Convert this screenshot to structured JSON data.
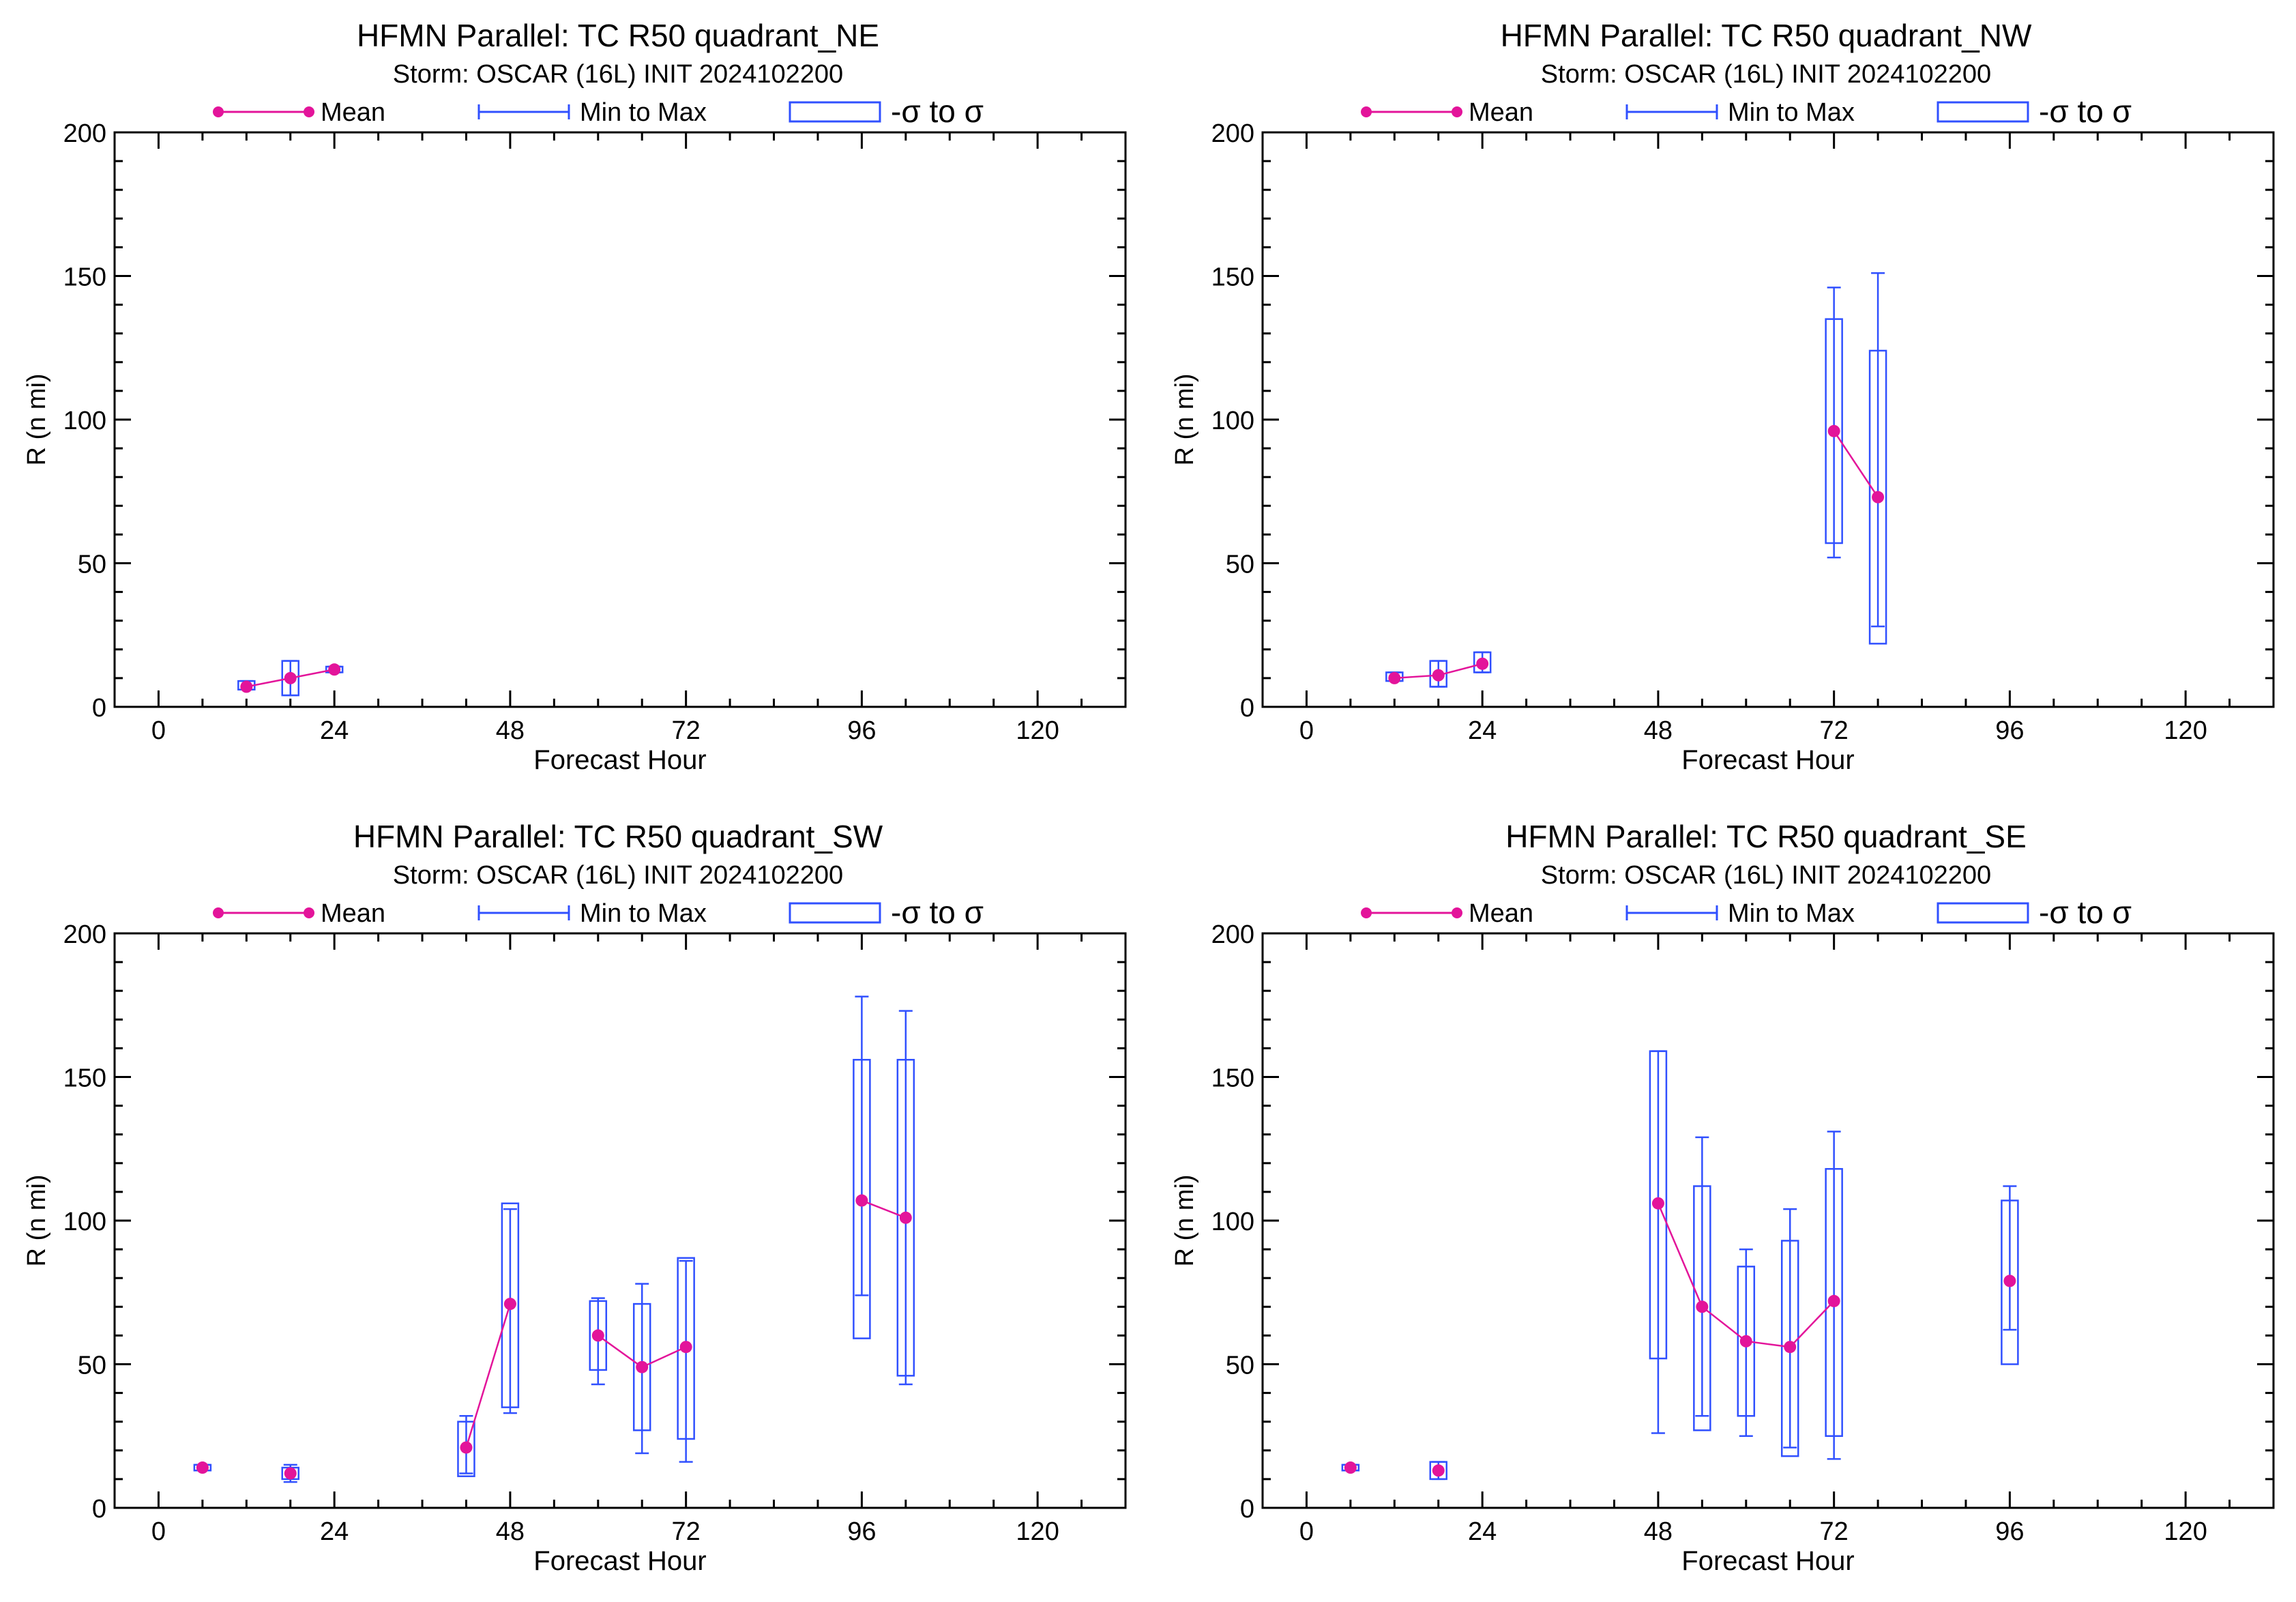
{
  "legend": {
    "mean_label": "Mean",
    "minmax_label": "Min to Max",
    "sigma_label": "-σ to σ"
  },
  "colors": {
    "mean": "#e3149a",
    "box": "#3050ff",
    "axes": "#000000"
  },
  "chart_data": [
    {
      "type": "box",
      "title": "HFMN Parallel: TC  R50 quadrant_NE",
      "subtitle": "Storm: OSCAR (16L) INIT 2024102200",
      "xlabel": "Forecast Hour",
      "ylabel": "R (n mi)",
      "xlim": [
        -6,
        132
      ],
      "ylim": [
        0,
        200
      ],
      "xticks": [
        0,
        24,
        48,
        72,
        96,
        120
      ],
      "yticks": [
        0,
        50,
        100,
        150,
        200
      ],
      "points": [
        {
          "x": 12,
          "mean": 7,
          "min": 6,
          "max": 9,
          "sd_lo": 6,
          "sd_hi": 9
        },
        {
          "x": 18,
          "mean": 10,
          "min": 4,
          "max": 16,
          "sd_lo": 4,
          "sd_hi": 16
        },
        {
          "x": 24,
          "mean": 13,
          "min": 12,
          "max": 14,
          "sd_lo": 12,
          "sd_hi": 14
        }
      ]
    },
    {
      "type": "box",
      "title": "HFMN Parallel: TC  R50 quadrant_NW",
      "subtitle": "Storm: OSCAR (16L) INIT 2024102200",
      "xlabel": "Forecast Hour",
      "ylabel": "R (n mi)",
      "xlim": [
        -6,
        132
      ],
      "ylim": [
        0,
        200
      ],
      "xticks": [
        0,
        24,
        48,
        72,
        96,
        120
      ],
      "yticks": [
        0,
        50,
        100,
        150,
        200
      ],
      "points": [
        {
          "x": 12,
          "mean": 10,
          "min": 9,
          "max": 12,
          "sd_lo": 9,
          "sd_hi": 12
        },
        {
          "x": 18,
          "mean": 11,
          "min": 7,
          "max": 16,
          "sd_lo": 7,
          "sd_hi": 16
        },
        {
          "x": 24,
          "mean": 15,
          "min": 12,
          "max": 19,
          "sd_lo": 12,
          "sd_hi": 19
        },
        {
          "x": 72,
          "mean": 96,
          "min": 52,
          "max": 146,
          "sd_lo": 57,
          "sd_hi": 135
        },
        {
          "x": 78,
          "mean": 73,
          "min": 28,
          "max": 151,
          "sd_lo": 22,
          "sd_hi": 124
        }
      ]
    },
    {
      "type": "box",
      "title": "HFMN Parallel: TC  R50 quadrant_SW",
      "subtitle": "Storm: OSCAR (16L) INIT 2024102200",
      "xlabel": "Forecast Hour",
      "ylabel": "R (n mi)",
      "xlim": [
        -6,
        132
      ],
      "ylim": [
        0,
        200
      ],
      "xticks": [
        0,
        24,
        48,
        72,
        96,
        120
      ],
      "yticks": [
        0,
        50,
        100,
        150,
        200
      ],
      "points": [
        {
          "x": 6,
          "mean": 14,
          "min": 13,
          "max": 15,
          "sd_lo": 13,
          "sd_hi": 15
        },
        {
          "x": 18,
          "mean": 12,
          "min": 9,
          "max": 15,
          "sd_lo": 10,
          "sd_hi": 14
        },
        {
          "x": 42,
          "mean": 21,
          "min": 12,
          "max": 32,
          "sd_lo": 11,
          "sd_hi": 30
        },
        {
          "x": 48,
          "mean": 71,
          "min": 33,
          "max": 104,
          "sd_lo": 35,
          "sd_hi": 106
        },
        {
          "x": 60,
          "mean": 60,
          "min": 43,
          "max": 73,
          "sd_lo": 48,
          "sd_hi": 72
        },
        {
          "x": 66,
          "mean": 49,
          "min": 19,
          "max": 78,
          "sd_lo": 27,
          "sd_hi": 71
        },
        {
          "x": 72,
          "mean": 56,
          "min": 16,
          "max": 86,
          "sd_lo": 24,
          "sd_hi": 87
        },
        {
          "x": 96,
          "mean": 107,
          "min": 74,
          "max": 178,
          "sd_lo": 59,
          "sd_hi": 156
        },
        {
          "x": 102,
          "mean": 101,
          "min": 43,
          "max": 173,
          "sd_lo": 46,
          "sd_hi": 156
        }
      ]
    },
    {
      "type": "box",
      "title": "HFMN Parallel: TC  R50 quadrant_SE",
      "subtitle": "Storm: OSCAR (16L) INIT 2024102200",
      "xlabel": "Forecast Hour",
      "ylabel": "R (n mi)",
      "xlim": [
        -6,
        132
      ],
      "ylim": [
        0,
        200
      ],
      "xticks": [
        0,
        24,
        48,
        72,
        96,
        120
      ],
      "yticks": [
        0,
        50,
        100,
        150,
        200
      ],
      "points": [
        {
          "x": 6,
          "mean": 14,
          "min": 13,
          "max": 15,
          "sd_lo": 13,
          "sd_hi": 15
        },
        {
          "x": 18,
          "mean": 13,
          "min": 10,
          "max": 16,
          "sd_lo": 10,
          "sd_hi": 16
        },
        {
          "x": 48,
          "mean": 106,
          "min": 26,
          "max": 159,
          "sd_lo": 52,
          "sd_hi": 159
        },
        {
          "x": 54,
          "mean": 70,
          "min": 32,
          "max": 129,
          "sd_lo": 27,
          "sd_hi": 112
        },
        {
          "x": 60,
          "mean": 58,
          "min": 25,
          "max": 90,
          "sd_lo": 32,
          "sd_hi": 84
        },
        {
          "x": 66,
          "mean": 56,
          "min": 21,
          "max": 104,
          "sd_lo": 18,
          "sd_hi": 93
        },
        {
          "x": 72,
          "mean": 72,
          "min": 17,
          "max": 131,
          "sd_lo": 25,
          "sd_hi": 118
        },
        {
          "x": 96,
          "mean": 79,
          "min": 62,
          "max": 112,
          "sd_lo": 50,
          "sd_hi": 107
        }
      ]
    }
  ]
}
